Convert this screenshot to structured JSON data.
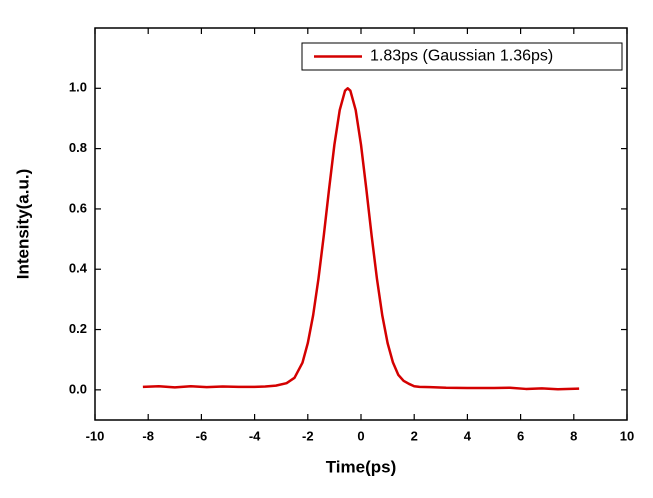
{
  "chart_data": {
    "type": "line",
    "xlabel": "Time(ps)",
    "ylabel": "Intensity(a.u.)",
    "xlim": [
      -10,
      10
    ],
    "xticks": [
      -10,
      -8,
      -6,
      -4,
      -2,
      0,
      2,
      4,
      6,
      8,
      10
    ],
    "ylim": [
      -0.1,
      1.2
    ],
    "yticks": [
      {
        "value": 0,
        "label": "0.0"
      },
      {
        "value": 0.2,
        "label": "0.2"
      },
      {
        "value": 0.4,
        "label": "0.4"
      },
      {
        "value": 0.6,
        "label": "0.6"
      },
      {
        "value": 0.8,
        "label": "0.8"
      },
      {
        "value": 1,
        "label": "1.0"
      }
    ],
    "legend": "upper right",
    "x": [
      -8.2,
      -7.6,
      -7,
      -6.4,
      -5.8,
      -5.2,
      -4.6,
      -4,
      -3.6,
      -3.2,
      -2.8,
      -2.5,
      -2.2,
      -2,
      -1.8,
      -1.6,
      -1.4,
      -1.2,
      -1,
      -0.8,
      -0.6,
      -0.5,
      -0.4,
      -0.2,
      0,
      0.2,
      0.4,
      0.6,
      0.8,
      1,
      1.2,
      1.4,
      1.6,
      1.8,
      2,
      2.2,
      2.6,
      3.2,
      4,
      5,
      5.6,
      6.2,
      6.8,
      7.4,
      8.2
    ],
    "series": [
      {
        "name": "1.83ps (Gaussian 1.36ps)",
        "color": "#d40000",
        "values": [
          0.01,
          0.012,
          0.008,
          0.012,
          0.009,
          0.011,
          0.01,
          0.01,
          0.011,
          0.014,
          0.022,
          0.04,
          0.09,
          0.155,
          0.247,
          0.368,
          0.511,
          0.666,
          0.813,
          0.928,
          0.992,
          1.0,
          0.992,
          0.928,
          0.813,
          0.666,
          0.511,
          0.368,
          0.247,
          0.155,
          0.091,
          0.05,
          0.03,
          0.02,
          0.012,
          0.01,
          0.009,
          0.007,
          0.006,
          0.006,
          0.007,
          0.003,
          0.005,
          0.002,
          0.004
        ]
      }
    ]
  }
}
